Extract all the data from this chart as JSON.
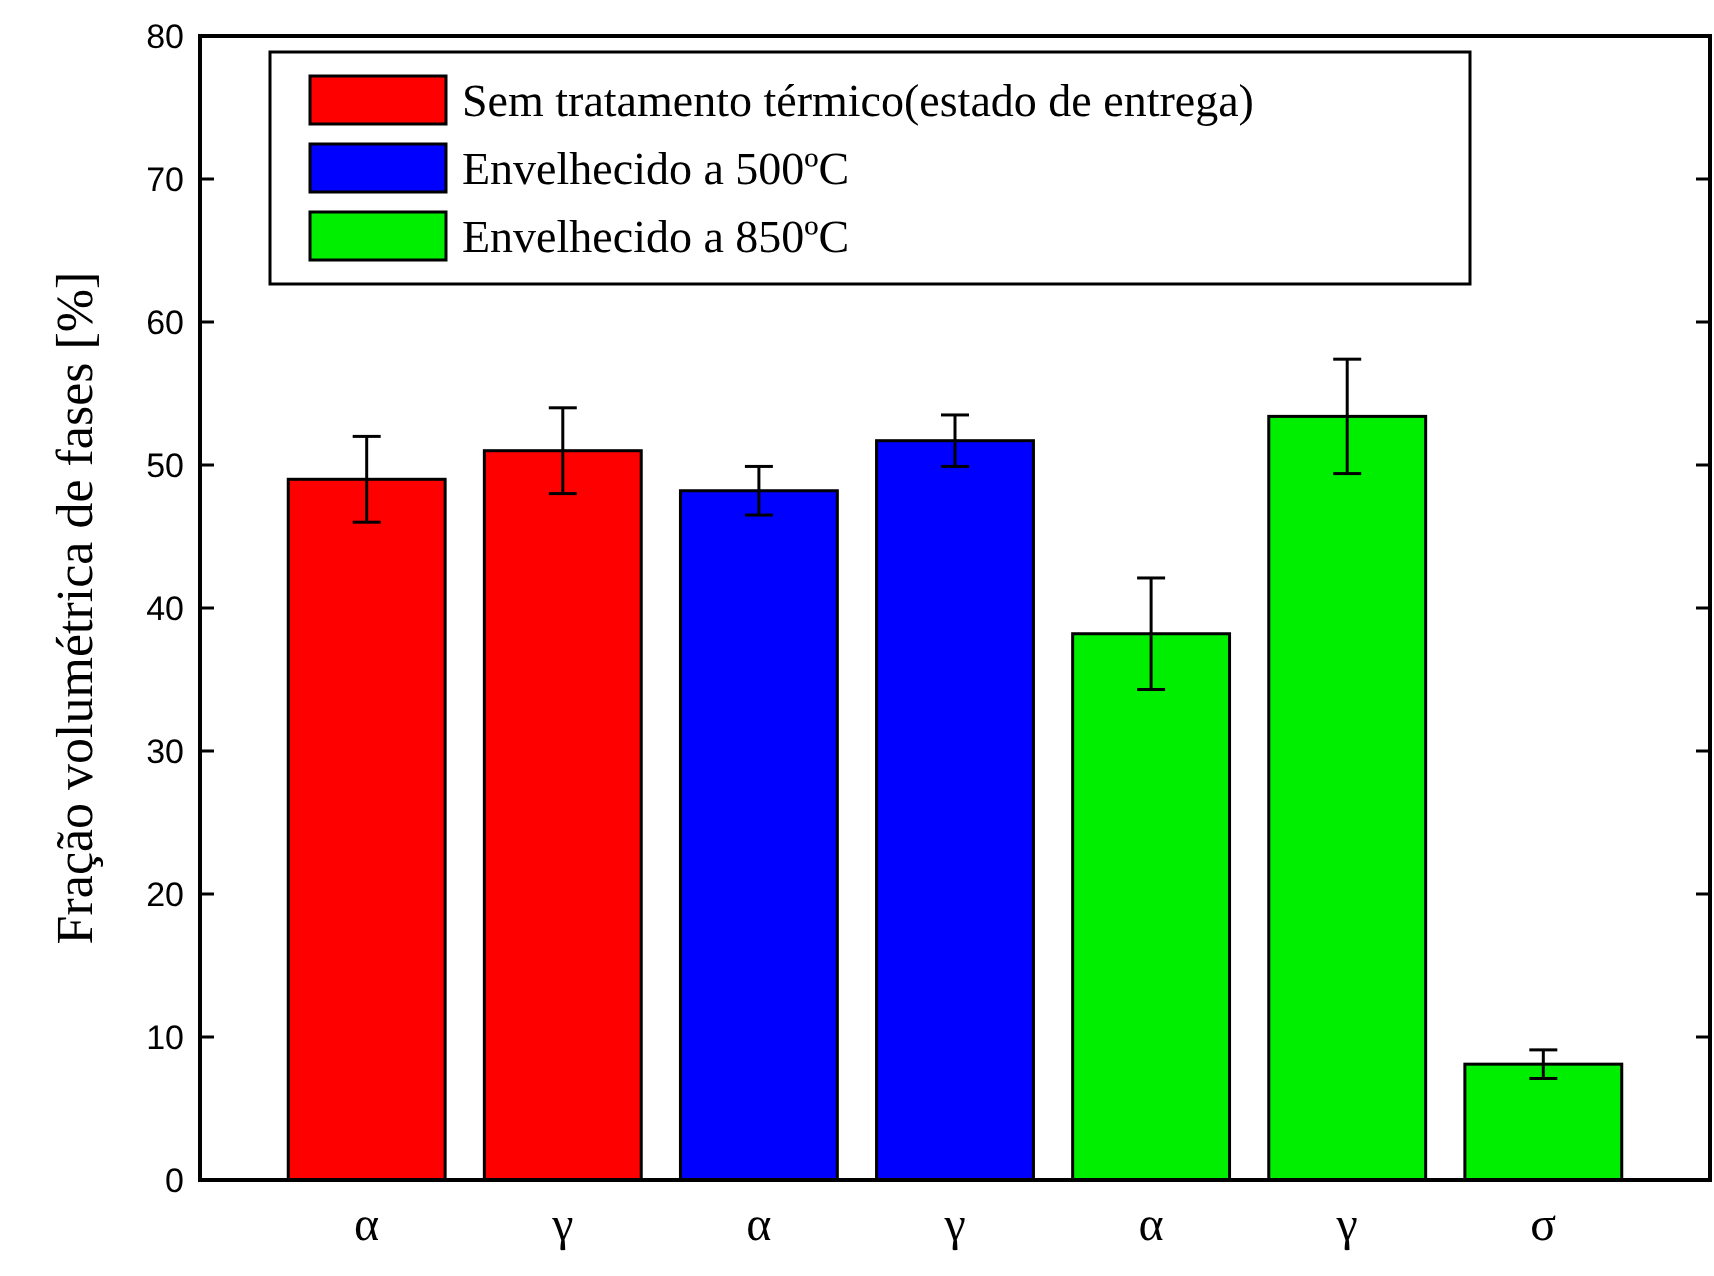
{
  "chart_data": {
    "type": "bar",
    "ylabel": "Fração volumétrica de fases [%]",
    "categories": [
      "α",
      "γ",
      "α",
      "γ",
      "α",
      "γ",
      "σ"
    ],
    "series": [
      {
        "name": "Sem tratamento térmico(estado de entrega)",
        "color": "#ff0000",
        "values": [
          49,
          51,
          null,
          null,
          null,
          null,
          null
        ],
        "errors": [
          3,
          3,
          null,
          null,
          null,
          null,
          null
        ]
      },
      {
        "name": "Envelhecido a 500ºC",
        "color": "#0000ff",
        "values": [
          null,
          null,
          48.2,
          51.7,
          null,
          null,
          null
        ],
        "errors": [
          null,
          null,
          1.7,
          1.8,
          null,
          null,
          null
        ]
      },
      {
        "name": "Envelhecido a 850ºC",
        "color": "#00ee00",
        "values": [
          null,
          null,
          null,
          null,
          38.2,
          53.4,
          8.1
        ],
        "errors": [
          null,
          null,
          null,
          null,
          3.9,
          4,
          1
        ]
      }
    ],
    "ylim": [
      0,
      80
    ],
    "yticks": [
      0,
      10,
      20,
      30,
      40,
      50,
      60,
      70,
      80
    ],
    "legend": "top",
    "grid": false
  }
}
